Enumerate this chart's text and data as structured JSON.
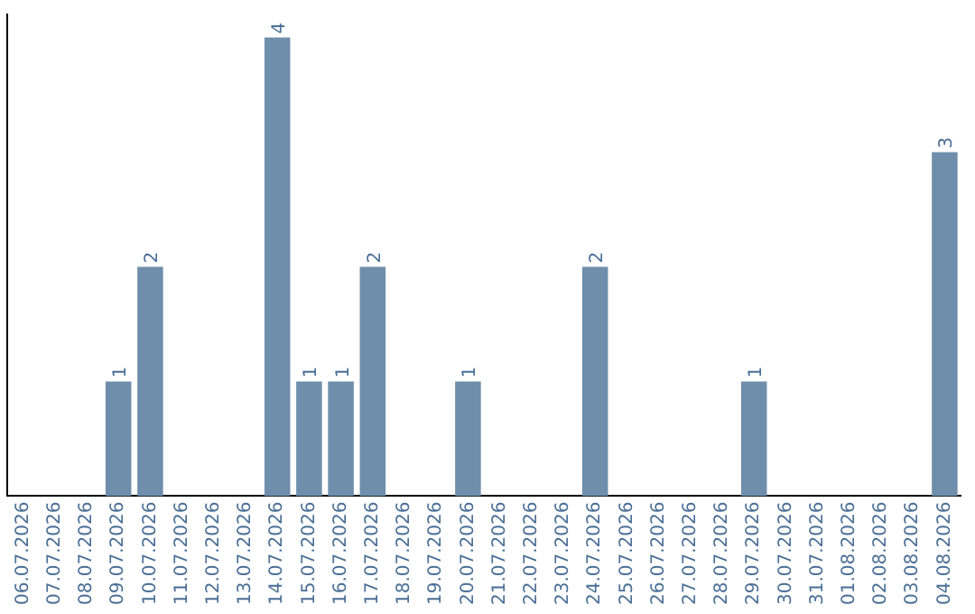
{
  "chart_data": {
    "type": "bar",
    "categories": [
      "06.07.2026",
      "07.07.2026",
      "08.07.2026",
      "09.07.2026",
      "10.07.2026",
      "11.07.2026",
      "12.07.2026",
      "13.07.2026",
      "14.07.2026",
      "15.07.2026",
      "16.07.2026",
      "17.07.2026",
      "18.07.2026",
      "19.07.2026",
      "20.07.2026",
      "21.07.2026",
      "22.07.2026",
      "23.07.2026",
      "24.07.2026",
      "25.07.2026",
      "26.07.2026",
      "27.07.2026",
      "28.07.2026",
      "29.07.2026",
      "30.07.2026",
      "31.07.2026",
      "01.08.2026",
      "02.08.2026",
      "03.08.2026",
      "04.08.2026"
    ],
    "values": [
      0,
      0,
      0,
      1,
      2,
      0,
      0,
      0,
      4,
      1,
      1,
      2,
      0,
      0,
      1,
      0,
      0,
      0,
      2,
      0,
      0,
      0,
      0,
      1,
      0,
      0,
      0,
      0,
      0,
      3
    ],
    "value_labels": [
      null,
      null,
      null,
      "1",
      "2",
      null,
      null,
      null,
      "4",
      "1",
      "1",
      "2",
      null,
      null,
      "1",
      null,
      null,
      null,
      "2",
      null,
      null,
      null,
      null,
      "1",
      null,
      null,
      null,
      null,
      null,
      "3"
    ],
    "color": "#6e8eab",
    "ylim": [
      0,
      4.2
    ],
    "tick_labels": "x",
    "grid": false,
    "legend": false
  }
}
